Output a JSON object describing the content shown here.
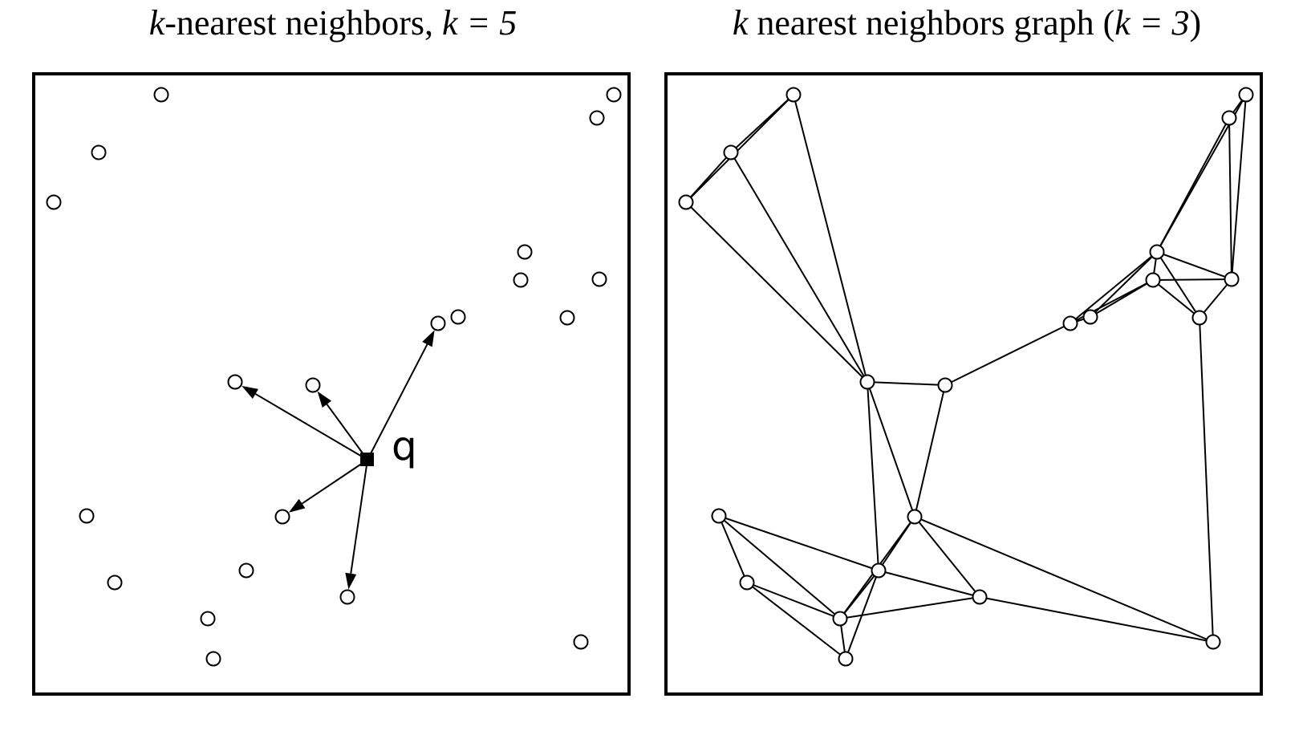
{
  "left_panel": {
    "title_k": "k",
    "title_text": "-nearest neighbors, ",
    "title_eq": "k = 5",
    "query_label": "q",
    "k": 5
  },
  "right_panel": {
    "title_k": "k",
    "title_text": " nearest neighbors graph (",
    "title_eq": "k = 3",
    "title_close": ")",
    "k": 3
  }
}
